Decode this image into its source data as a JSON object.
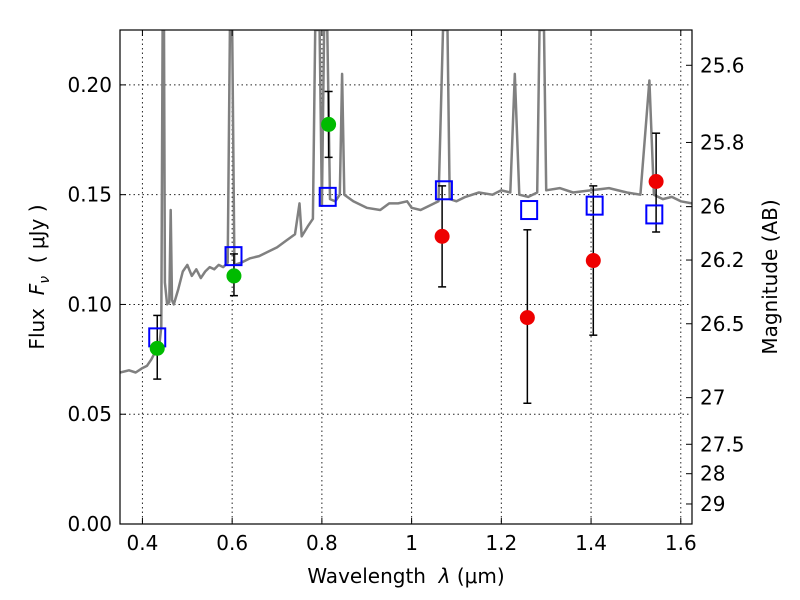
{
  "chart_data": {
    "type": "scatter",
    "xlabel": {
      "prefix": "Wavelength  ",
      "symbol": "λ",
      "suffix": " (μm)"
    },
    "ylabel": {
      "prefix": "Flux  ",
      "symbol": "F",
      "sub": "ν",
      "suffix": "  ( μJy )"
    },
    "y2label": "Magnitude (AB)",
    "xlim": [
      0.35,
      1.625
    ],
    "ylim": [
      0.0,
      0.225
    ],
    "grid": true,
    "x_ticks": [
      {
        "value": 0.4,
        "label": "0.4"
      },
      {
        "value": 0.6,
        "label": "0.6"
      },
      {
        "value": 0.8,
        "label": "0.8"
      },
      {
        "value": 1.0,
        "label": "1"
      },
      {
        "value": 1.2,
        "label": "1.2"
      },
      {
        "value": 1.4,
        "label": "1.4"
      },
      {
        "value": 1.6,
        "label": "1.6"
      }
    ],
    "y_ticks": [
      {
        "value": 0.0,
        "label": "0.00"
      },
      {
        "value": 0.05,
        "label": "0.05"
      },
      {
        "value": 0.1,
        "label": "0.10"
      },
      {
        "value": 0.15,
        "label": "0.15"
      },
      {
        "value": 0.2,
        "label": "0.20"
      }
    ],
    "y2_ticks": [
      {
        "value": 25.6,
        "label": "25.6"
      },
      {
        "value": 25.8,
        "label": "25.8"
      },
      {
        "value": 26.0,
        "label": "26"
      },
      {
        "value": 26.2,
        "label": "26.2"
      },
      {
        "value": 26.5,
        "label": "26.5"
      },
      {
        "value": 27.0,
        "label": "27"
      },
      {
        "value": 27.5,
        "label": "27.5"
      },
      {
        "value": 28.0,
        "label": "28"
      },
      {
        "value": 29.0,
        "label": "29"
      }
    ],
    "model_spectrum": {
      "color": "#808080",
      "points": [
        [
          0.35,
          0.069
        ],
        [
          0.37,
          0.07
        ],
        [
          0.385,
          0.069
        ],
        [
          0.4,
          0.071
        ],
        [
          0.41,
          0.072
        ],
        [
          0.42,
          0.075
        ],
        [
          0.43,
          0.079
        ],
        [
          0.438,
          0.082
        ],
        [
          0.442,
          0.09
        ],
        [
          0.445,
          0.225
        ],
        [
          0.448,
          0.225
        ],
        [
          0.45,
          0.11
        ],
        [
          0.455,
          0.1
        ],
        [
          0.46,
          0.101
        ],
        [
          0.463,
          0.143
        ],
        [
          0.466,
          0.102
        ],
        [
          0.47,
          0.1
        ],
        [
          0.48,
          0.107
        ],
        [
          0.49,
          0.115
        ],
        [
          0.5,
          0.118
        ],
        [
          0.51,
          0.113
        ],
        [
          0.52,
          0.116
        ],
        [
          0.53,
          0.112
        ],
        [
          0.54,
          0.115
        ],
        [
          0.55,
          0.117
        ],
        [
          0.56,
          0.116
        ],
        [
          0.57,
          0.118
        ],
        [
          0.58,
          0.117
        ],
        [
          0.59,
          0.119
        ],
        [
          0.595,
          0.225
        ],
        [
          0.6,
          0.225
        ],
        [
          0.605,
          0.118
        ],
        [
          0.62,
          0.119
        ],
        [
          0.64,
          0.121
        ],
        [
          0.66,
          0.122
        ],
        [
          0.68,
          0.124
        ],
        [
          0.7,
          0.126
        ],
        [
          0.72,
          0.129
        ],
        [
          0.74,
          0.132
        ],
        [
          0.75,
          0.146
        ],
        [
          0.755,
          0.131
        ],
        [
          0.77,
          0.136
        ],
        [
          0.78,
          0.139
        ],
        [
          0.785,
          0.225
        ],
        [
          0.795,
          0.225
        ],
        [
          0.8,
          0.145
        ],
        [
          0.805,
          0.225
        ],
        [
          0.812,
          0.225
        ],
        [
          0.818,
          0.148
        ],
        [
          0.83,
          0.147
        ],
        [
          0.84,
          0.15
        ],
        [
          0.845,
          0.205
        ],
        [
          0.85,
          0.15
        ],
        [
          0.87,
          0.147
        ],
        [
          0.9,
          0.144
        ],
        [
          0.93,
          0.143
        ],
        [
          0.95,
          0.146
        ],
        [
          0.97,
          0.146
        ],
        [
          0.99,
          0.147
        ],
        [
          1.0,
          0.144
        ],
        [
          1.02,
          0.143
        ],
        [
          1.04,
          0.145
        ],
        [
          1.06,
          0.147
        ],
        [
          1.07,
          0.225
        ],
        [
          1.08,
          0.225
        ],
        [
          1.085,
          0.148
        ],
        [
          1.1,
          0.147
        ],
        [
          1.12,
          0.149
        ],
        [
          1.15,
          0.151
        ],
        [
          1.18,
          0.15
        ],
        [
          1.2,
          0.152
        ],
        [
          1.22,
          0.151
        ],
        [
          1.23,
          0.205
        ],
        [
          1.24,
          0.15
        ],
        [
          1.26,
          0.149
        ],
        [
          1.28,
          0.151
        ],
        [
          1.285,
          0.225
        ],
        [
          1.295,
          0.225
        ],
        [
          1.3,
          0.152
        ],
        [
          1.33,
          0.153
        ],
        [
          1.36,
          0.151
        ],
        [
          1.4,
          0.152
        ],
        [
          1.44,
          0.153
        ],
        [
          1.48,
          0.151
        ],
        [
          1.51,
          0.15
        ],
        [
          1.53,
          0.202
        ],
        [
          1.54,
          0.15
        ],
        [
          1.56,
          0.148
        ],
        [
          1.58,
          0.149
        ],
        [
          1.6,
          0.147
        ],
        [
          1.625,
          0.146
        ]
      ]
    },
    "series": [
      {
        "marker": "open-square",
        "color": "#0000ff",
        "points": [
          {
            "x": 0.433,
            "y": 0.085
          },
          {
            "x": 0.603,
            "y": 0.122
          },
          {
            "x": 0.813,
            "y": 0.149
          },
          {
            "x": 1.072,
            "y": 0.152
          },
          {
            "x": 1.262,
            "y": 0.143
          },
          {
            "x": 1.408,
            "y": 0.145
          },
          {
            "x": 1.541,
            "y": 0.141
          }
        ]
      },
      {
        "marker": "filled-circle",
        "color": "#00bb00",
        "points": [
          {
            "x": 0.433,
            "y": 0.08,
            "yerr": [
              0.066,
              0.095
            ]
          },
          {
            "x": 0.604,
            "y": 0.113,
            "yerr": [
              0.104,
              0.123
            ]
          },
          {
            "x": 0.815,
            "y": 0.182,
            "yerr": [
              0.167,
              0.197
            ]
          }
        ]
      },
      {
        "marker": "filled-circle",
        "color": "#ee0000",
        "points": [
          {
            "x": 1.068,
            "y": 0.131,
            "yerr": [
              0.108,
              0.154
            ]
          },
          {
            "x": 1.258,
            "y": 0.094,
            "yerr": [
              0.055,
              0.134
            ]
          },
          {
            "x": 1.405,
            "y": 0.12,
            "yerr": [
              0.086,
              0.154
            ]
          },
          {
            "x": 1.545,
            "y": 0.156,
            "yerr": [
              0.133,
              0.178
            ]
          }
        ]
      }
    ]
  }
}
